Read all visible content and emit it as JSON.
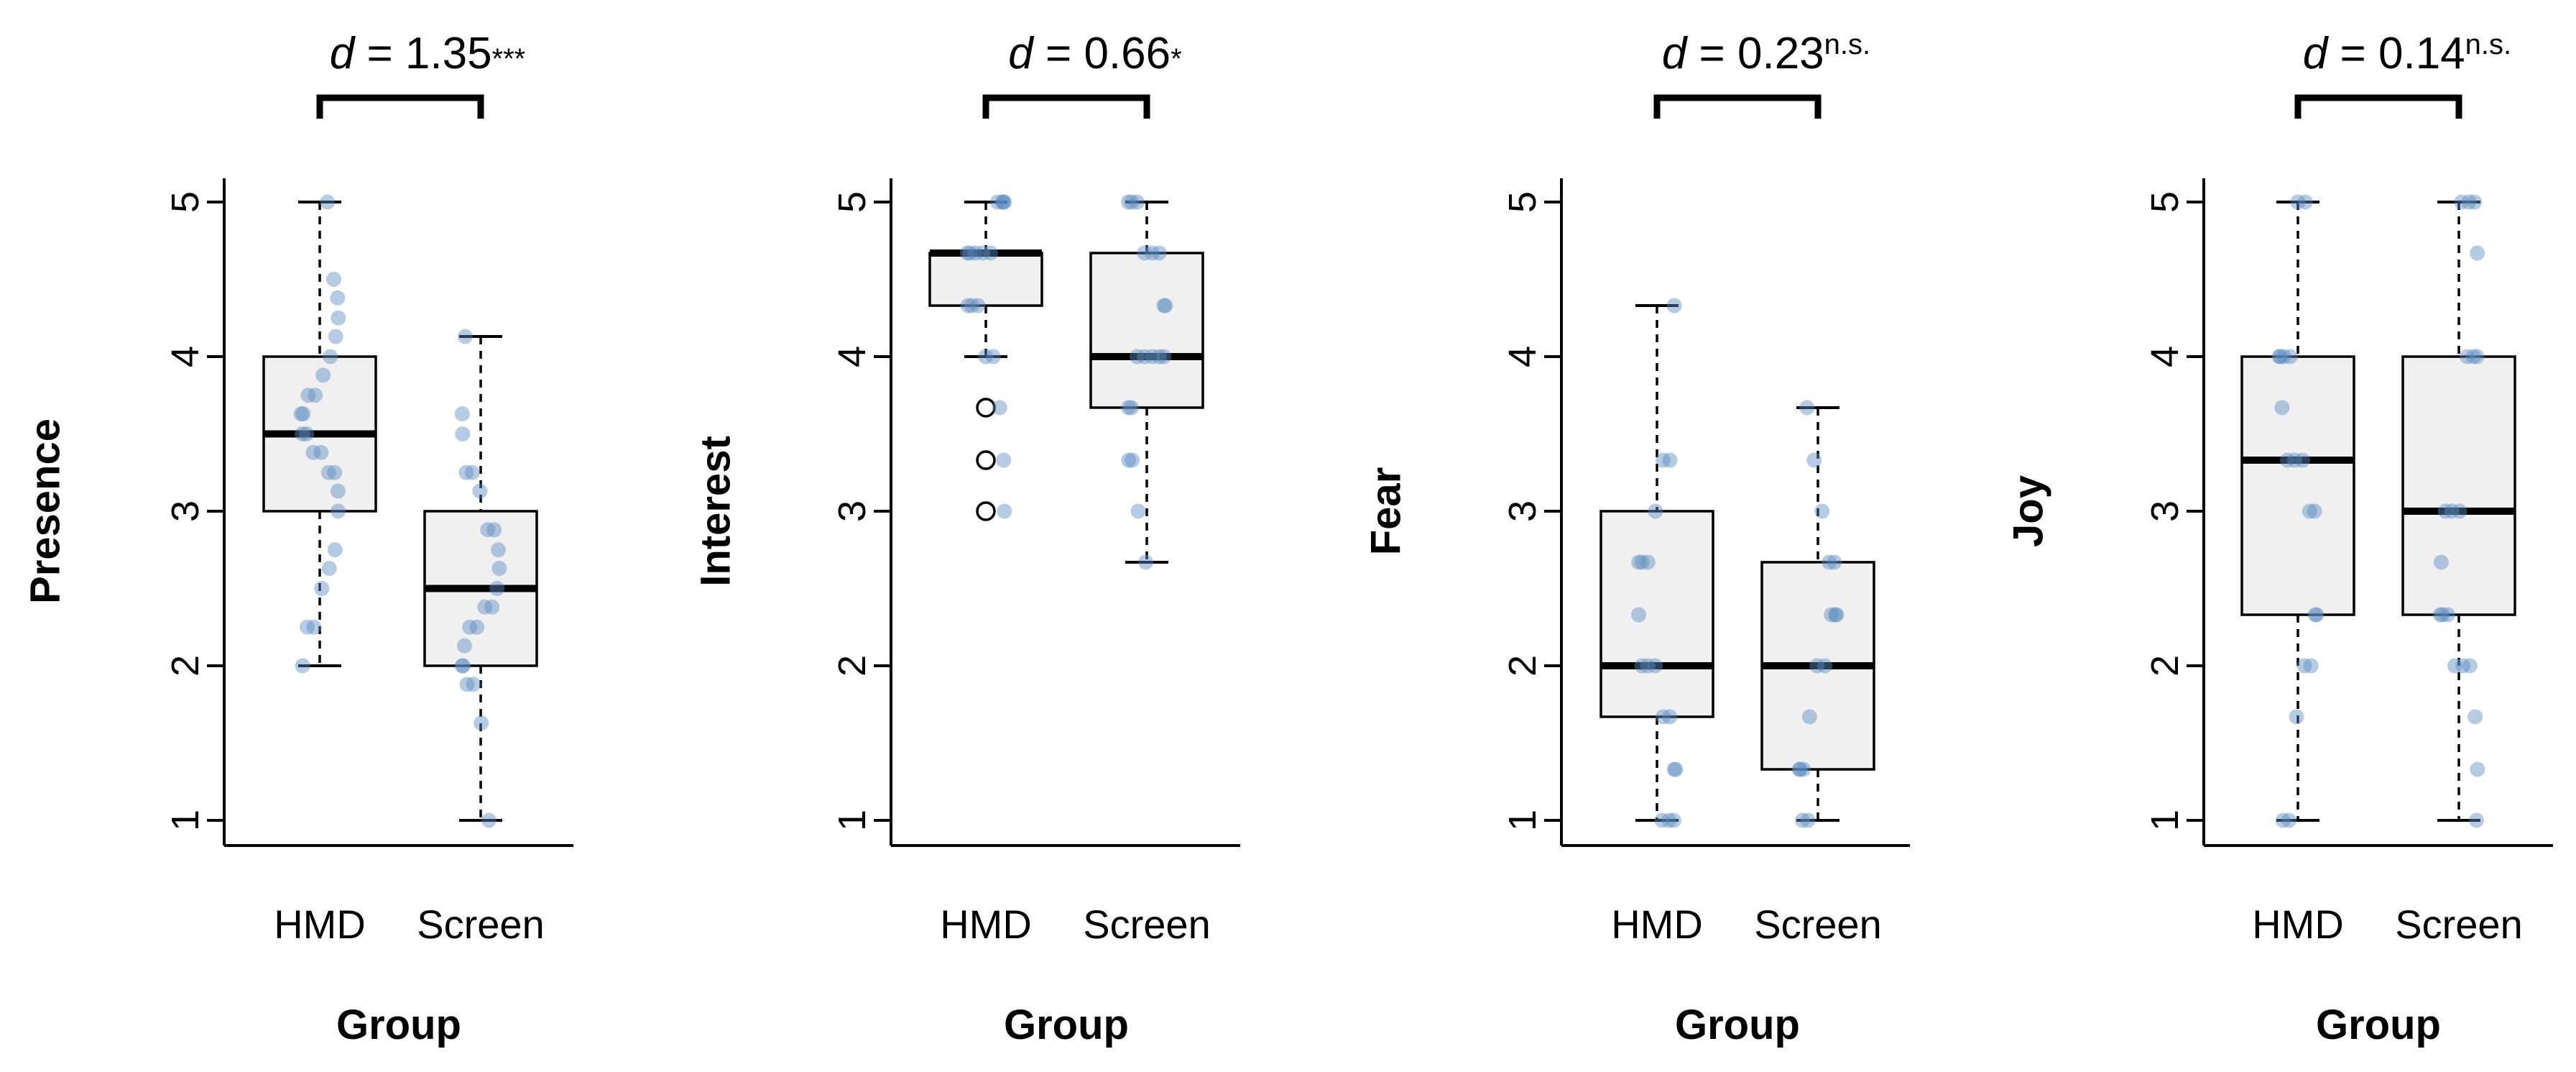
{
  "chart_data": [
    {
      "type": "box",
      "ylabel": "Presence",
      "xlabel": "Group",
      "categories": [
        "HMD",
        "Screen"
      ],
      "ylim": [
        1,
        5
      ],
      "yticks": [
        "1",
        "2",
        "3",
        "4",
        "5"
      ],
      "effect": {
        "prefix": "d",
        "text": " = 1.35",
        "sup": "***"
      },
      "boxes": [
        {
          "name": "HMD",
          "whisker_low": 2,
          "q1": 3,
          "median": 3.5,
          "q3": 4,
          "whisker_high": 5,
          "outliers": [],
          "points": [
            5,
            4.5,
            4.38,
            4.25,
            4.13,
            4,
            3.88,
            3.75,
            3.75,
            3.63,
            3.63,
            3.5,
            3.5,
            3.38,
            3.38,
            3.25,
            3.25,
            3.13,
            3,
            2.75,
            2.63,
            2.5,
            2.25,
            2.25,
            2
          ]
        },
        {
          "name": "Screen",
          "whisker_low": 1,
          "q1": 2,
          "median": 2.5,
          "q3": 3,
          "whisker_high": 4.13,
          "outliers": [],
          "points": [
            4.13,
            3.63,
            3.5,
            3.25,
            3.25,
            3.13,
            2.88,
            2.88,
            2.75,
            2.63,
            2.5,
            2.38,
            2.38,
            2.25,
            2.25,
            2.13,
            2,
            2,
            1.88,
            1.88,
            1.63,
            1
          ]
        }
      ]
    },
    {
      "type": "box",
      "ylabel": "Interest",
      "xlabel": "Group",
      "categories": [
        "HMD",
        "Screen"
      ],
      "ylim": [
        1,
        5
      ],
      "yticks": [
        "1",
        "2",
        "3",
        "4",
        "5"
      ],
      "effect": {
        "prefix": "d",
        "text": " = 0.66",
        "sup": "*"
      },
      "boxes": [
        {
          "name": "HMD",
          "whisker_low": 4,
          "q1": 4.33,
          "median": 4.67,
          "q3": 4.67,
          "whisker_high": 5,
          "outliers": [
            3.67,
            3.33,
            3
          ],
          "points": [
            5,
            5,
            5,
            5,
            4.67,
            4.67,
            4.67,
            4.67,
            4.67,
            4.33,
            4.33,
            4.33,
            4,
            4,
            3.67,
            3.33,
            3
          ]
        },
        {
          "name": "Screen",
          "whisker_low": 2.67,
          "q1": 3.67,
          "median": 4,
          "q3": 4.67,
          "whisker_high": 5,
          "outliers": [],
          "points": [
            5,
            5,
            5,
            4.67,
            4.67,
            4.67,
            4.33,
            4.33,
            4,
            4,
            4,
            4,
            4,
            3.67,
            3.67,
            3.33,
            3.33,
            3,
            2.67
          ]
        }
      ]
    },
    {
      "type": "box",
      "ylabel": "Fear",
      "xlabel": "Group",
      "categories": [
        "HMD",
        "Screen"
      ],
      "ylim": [
        1,
        5
      ],
      "yticks": [
        "1",
        "2",
        "3",
        "4",
        "5"
      ],
      "effect": {
        "prefix": "d",
        "text": " = 0.23",
        "sup": "n.s."
      },
      "boxes": [
        {
          "name": "HMD",
          "whisker_low": 1,
          "q1": 1.67,
          "median": 2,
          "q3": 3,
          "whisker_high": 4.33,
          "outliers": [],
          "points": [
            4.33,
            3.33,
            3.33,
            3,
            2.67,
            2.67,
            2.67,
            2.33,
            2,
            2,
            2,
            1.67,
            1.67,
            1.33,
            1.33,
            1,
            1,
            1
          ]
        },
        {
          "name": "Screen",
          "whisker_low": 1,
          "q1": 1.33,
          "median": 2,
          "q3": 2.67,
          "whisker_high": 3.67,
          "outliers": [],
          "points": [
            3.67,
            3.33,
            3,
            2.67,
            2.67,
            2.33,
            2.33,
            2.33,
            2,
            2,
            1.67,
            1.33,
            1.33,
            1.33,
            1,
            1
          ]
        }
      ]
    },
    {
      "type": "box",
      "ylabel": "Joy",
      "xlabel": "Group",
      "categories": [
        "HMD",
        "Screen"
      ],
      "ylim": [
        1,
        5
      ],
      "yticks": [
        "1",
        "2",
        "3",
        "4",
        "5"
      ],
      "effect": {
        "prefix": "d",
        "text": " = 0.14",
        "sup": "n.s."
      },
      "boxes": [
        {
          "name": "HMD",
          "whisker_low": 1,
          "q1": 2.33,
          "median": 3.33,
          "q3": 4,
          "whisker_high": 5,
          "outliers": [],
          "points": [
            5,
            5,
            4,
            4,
            4,
            4,
            3.67,
            3.33,
            3.33,
            3.33,
            3,
            3,
            2.33,
            2.33,
            2,
            2,
            1.67,
            1,
            1
          ]
        },
        {
          "name": "Screen",
          "whisker_low": 1,
          "q1": 2.33,
          "median": 3,
          "q3": 4,
          "whisker_high": 5,
          "outliers": [],
          "points": [
            5,
            5,
            5,
            4.67,
            4,
            4,
            4,
            3,
            3,
            3,
            2.67,
            2.33,
            2.33,
            2.33,
            2,
            2,
            2,
            1.67,
            1.33,
            1
          ]
        }
      ]
    }
  ],
  "colors": {
    "point": "#5b8cc2",
    "box_fill": "#f0f0f0",
    "stroke": "#000000"
  }
}
